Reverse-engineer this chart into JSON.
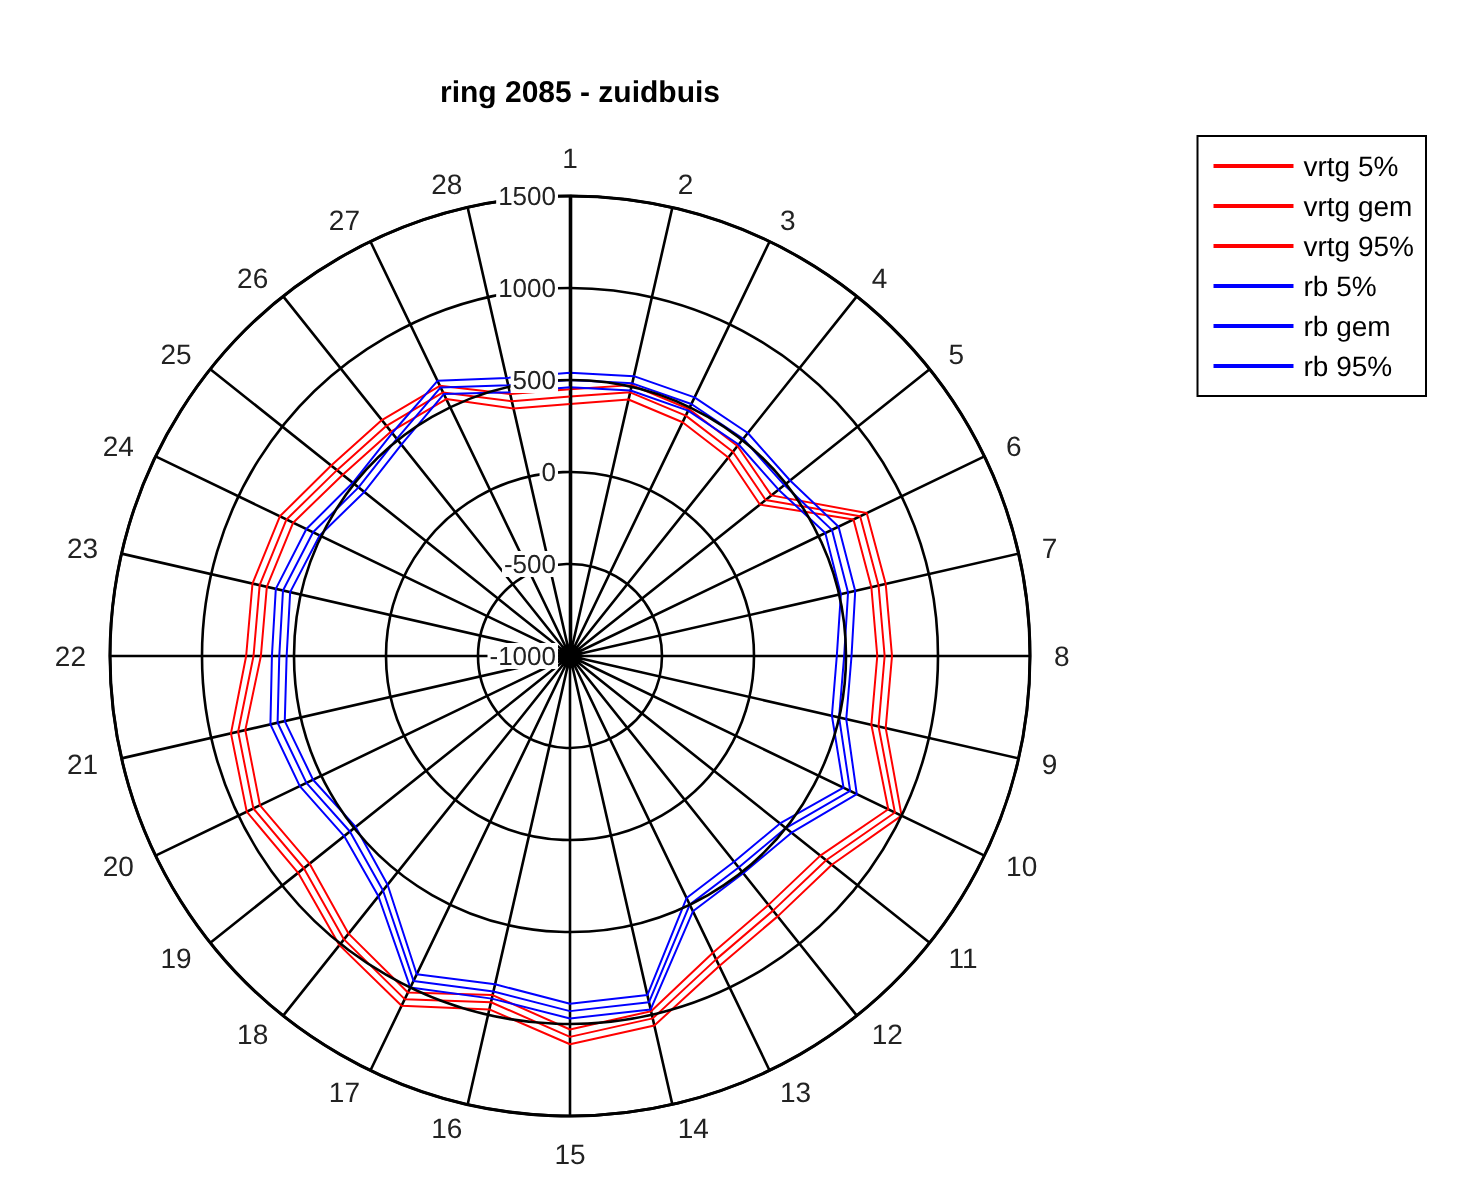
{
  "chart_data": {
    "type": "radar",
    "title": "ring 2085 - zuidbuis",
    "categories": [
      "1",
      "2",
      "3",
      "4",
      "5",
      "6",
      "7",
      "8",
      "9",
      "10",
      "11",
      "12",
      "13",
      "14",
      "15",
      "16",
      "17",
      "18",
      "19",
      "20",
      "21",
      "22",
      "23",
      "24",
      "25",
      "26",
      "27",
      "28"
    ],
    "ylim": [
      -1000,
      1500
    ],
    "yticks": [
      -1000,
      -500,
      0,
      500,
      1000,
      1500
    ],
    "grid": true,
    "legend": "top right",
    "marker": "none",
    "line_style": "solid",
    "series": [
      {
        "name": "vrtg 5%",
        "color": "#ff0000",
        "values": [
          370,
          430,
          410,
          380,
          320,
          710,
          680,
          670,
          680,
          920,
          740,
          730,
          790,
          980,
          1030,
          890,
          1030,
          930,
          810,
          870,
          810,
          680,
          690,
          670,
          580,
          560,
          550,
          380
        ]
      },
      {
        "name": "vrtg gem",
        "color": "#ff0000",
        "values": [
          410,
          470,
          450,
          420,
          360,
          750,
          720,
          710,
          720,
          960,
          780,
          770,
          830,
          1020,
          1070,
          930,
          1070,
          970,
          850,
          910,
          850,
          720,
          730,
          710,
          620,
          600,
          590,
          420
        ]
      },
      {
        "name": "vrtg 95%",
        "color": "#ff0000",
        "values": [
          450,
          510,
          490,
          460,
          400,
          790,
          760,
          750,
          760,
          1000,
          820,
          810,
          870,
          1060,
          1110,
          970,
          1110,
          1010,
          890,
          950,
          890,
          760,
          770,
          750,
          660,
          640,
          630,
          460
        ]
      },
      {
        "name": "rb 5%",
        "color": "#0000ff",
        "values": [
          460,
          480,
          480,
          470,
          450,
          540,
          510,
          450,
          460,
          650,
          460,
          430,
          460,
          890,
          890,
          830,
          920,
          590,
          490,
          550,
          590,
          540,
          560,
          510,
          430,
          470,
          580,
          470
        ]
      },
      {
        "name": "rb gem",
        "color": "#0000ff",
        "values": [
          500,
          520,
          520,
          510,
          490,
          580,
          550,
          490,
          500,
          690,
          500,
          470,
          500,
          930,
          930,
          870,
          960,
          630,
          530,
          590,
          630,
          580,
          600,
          550,
          470,
          510,
          620,
          510
        ]
      },
      {
        "name": "rb 95%",
        "color": "#0000ff",
        "values": [
          540,
          560,
          560,
          550,
          530,
          620,
          590,
          530,
          540,
          730,
          540,
          510,
          540,
          970,
          970,
          910,
          1000,
          670,
          570,
          630,
          670,
          620,
          640,
          590,
          510,
          550,
          660,
          550
        ]
      }
    ]
  }
}
